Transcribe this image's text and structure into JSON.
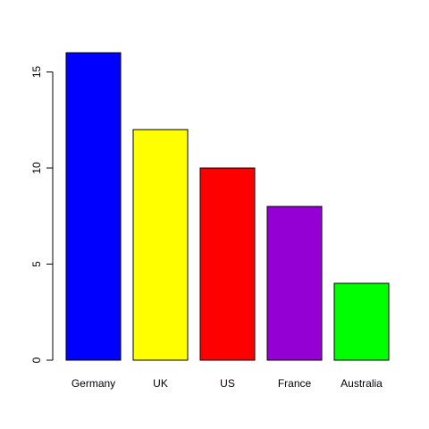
{
  "chart_data": {
    "type": "bar",
    "categories": [
      "Germany",
      "UK",
      "US",
      "France",
      "Australia"
    ],
    "values": [
      16,
      12,
      10,
      8,
      4
    ],
    "colors": [
      "#0000ff",
      "#ffff00",
      "#ff0000",
      "#9400d3",
      "#00ff00"
    ],
    "ylim": [
      0,
      16
    ],
    "yticks": [
      "0",
      "5",
      "10",
      "15"
    ],
    "grid": false,
    "legend": "none"
  }
}
